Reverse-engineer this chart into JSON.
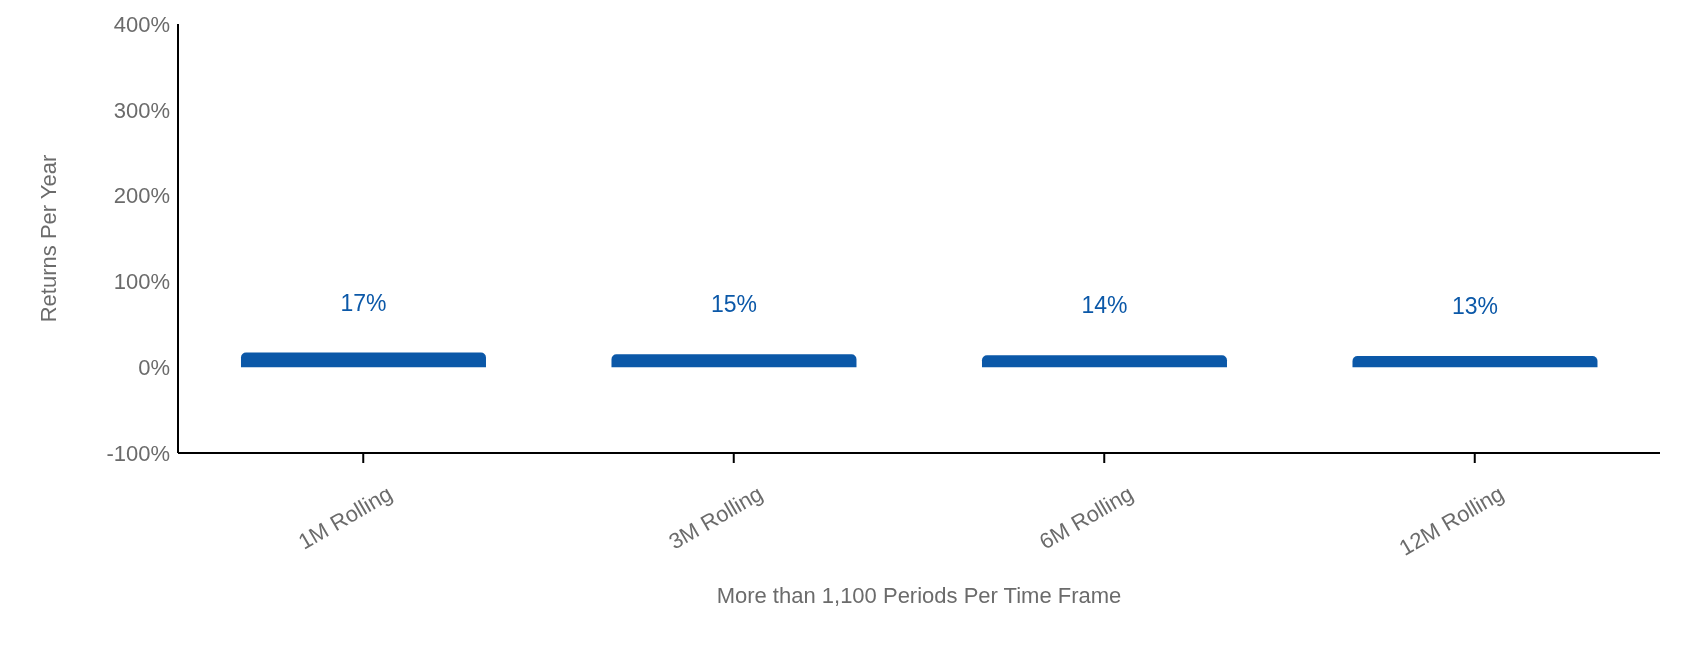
{
  "chart_data": {
    "type": "bar",
    "xlabel": "More than 1,100 Periods Per Time Frame",
    "ylabel": "Returns Per Year",
    "categories": [
      "1M Rolling",
      "3M Rolling",
      "6M Rolling",
      "12M Rolling"
    ],
    "values": [
      17,
      15,
      14,
      13
    ],
    "value_labels": [
      "17%",
      "15%",
      "14%",
      "13%"
    ],
    "color": "#0b58a8",
    "ylim": [
      -100,
      400
    ],
    "yticks": [
      {
        "value": -100,
        "label": "-100%"
      },
      {
        "value": 0,
        "label": "0%"
      },
      {
        "value": 100,
        "label": "100%"
      },
      {
        "value": 200,
        "label": "200%"
      },
      {
        "value": 300,
        "label": "300%"
      },
      {
        "value": 400,
        "label": "400%"
      }
    ],
    "grid": false,
    "legend": false
  }
}
